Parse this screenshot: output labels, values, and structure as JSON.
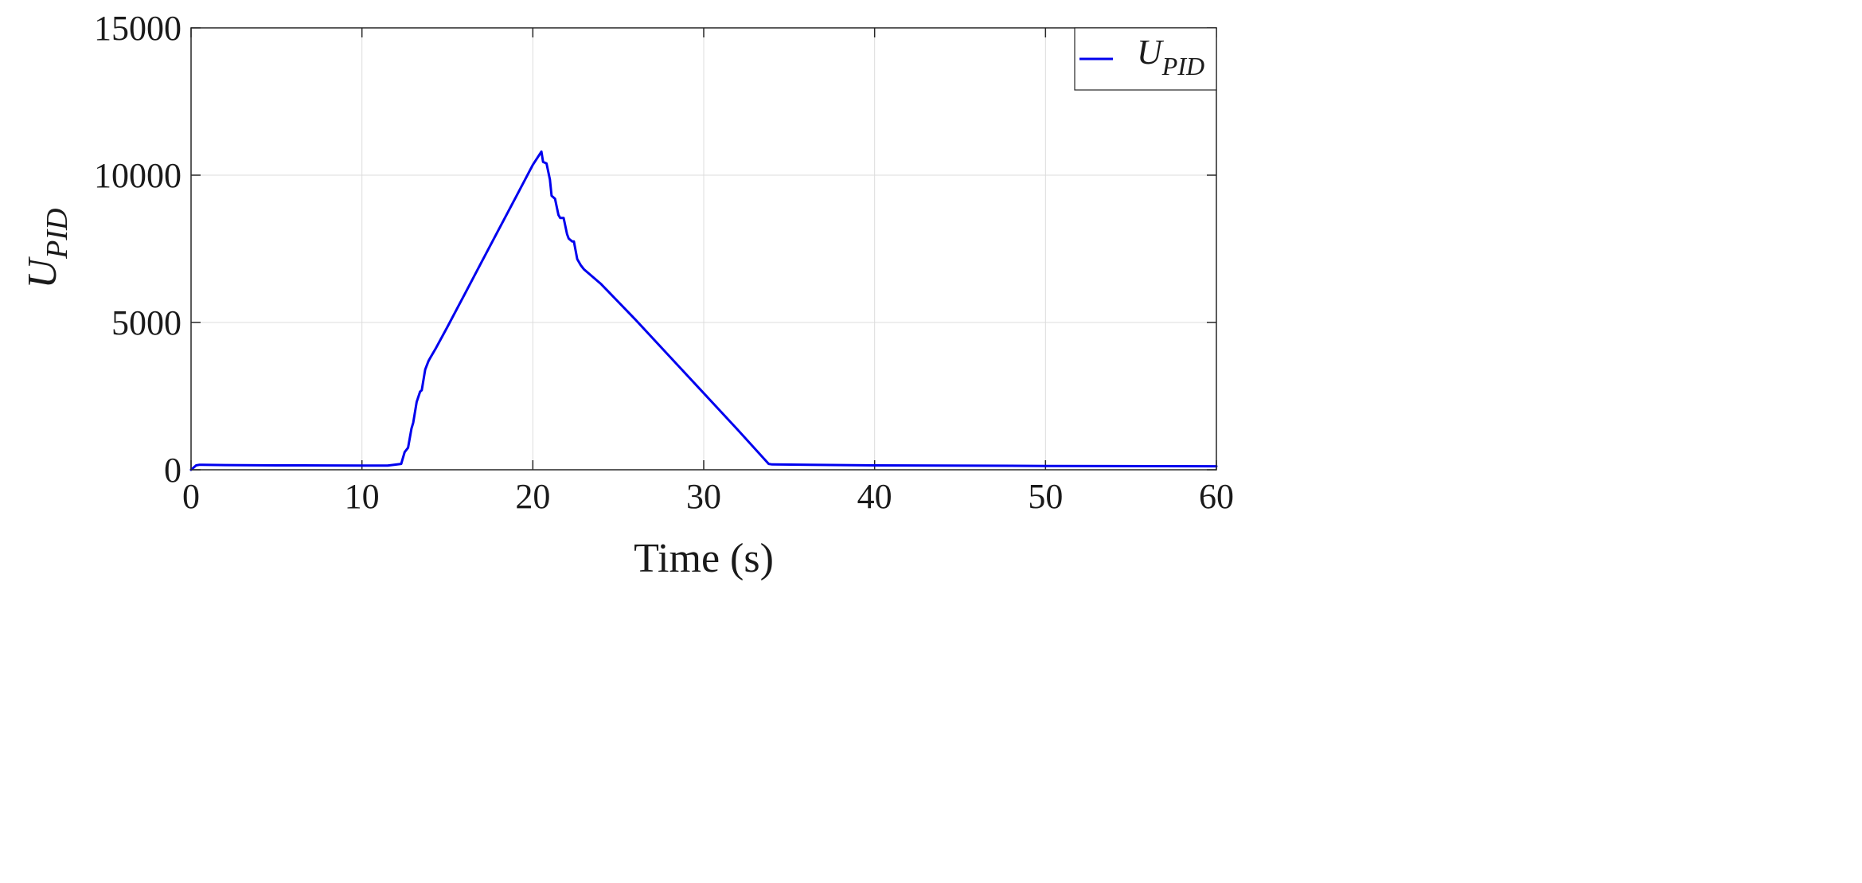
{
  "chart_data": {
    "type": "line",
    "title": "",
    "xlabel": "Time (s)",
    "ylabel_main": "U",
    "ylabel_sub": "PID",
    "xlim": [
      0,
      60
    ],
    "ylim": [
      0,
      15000
    ],
    "xticks": [
      0,
      10,
      20,
      30,
      40,
      50,
      60
    ],
    "yticks": [
      0,
      5000,
      10000,
      15000
    ],
    "xtick_labels": [
      "0",
      "10",
      "20",
      "30",
      "40",
      "50",
      "60"
    ],
    "ytick_labels": [
      "0",
      "5000",
      "10000",
      "15000"
    ],
    "grid": true,
    "legend_position": "top-right",
    "series": [
      {
        "legend_main": "U",
        "legend_sub": "PID",
        "color": "#0000ee",
        "x": [
          0,
          0.3,
          0.5,
          2,
          5,
          8,
          10,
          11.5,
          12.3,
          12.5,
          12.7,
          12.9,
          13.0,
          13.2,
          13.4,
          13.5,
          13.7,
          13.9,
          14.0,
          14.3,
          15,
          16,
          17,
          18,
          19,
          20,
          20.5,
          20.6,
          20.8,
          21.0,
          21.1,
          21.3,
          21.5,
          21.6,
          21.8,
          22.0,
          22.1,
          22.3,
          22.4,
          22.6,
          22.8,
          23.0,
          24,
          26,
          28,
          30,
          32,
          33.8,
          34,
          40,
          50,
          60
        ],
        "y": [
          0,
          150,
          170,
          160,
          150,
          145,
          140,
          140,
          200,
          600,
          750,
          1400,
          1600,
          2300,
          2650,
          2700,
          3400,
          3700,
          3800,
          4100,
          4850,
          5950,
          7050,
          8150,
          9250,
          10350,
          10800,
          10450,
          10400,
          9850,
          9300,
          9200,
          8650,
          8550,
          8550,
          8000,
          7850,
          7750,
          7750,
          7150,
          6950,
          6800,
          6300,
          5100,
          3850,
          2600,
          1350,
          200,
          180,
          150,
          130,
          120
        ]
      }
    ]
  }
}
